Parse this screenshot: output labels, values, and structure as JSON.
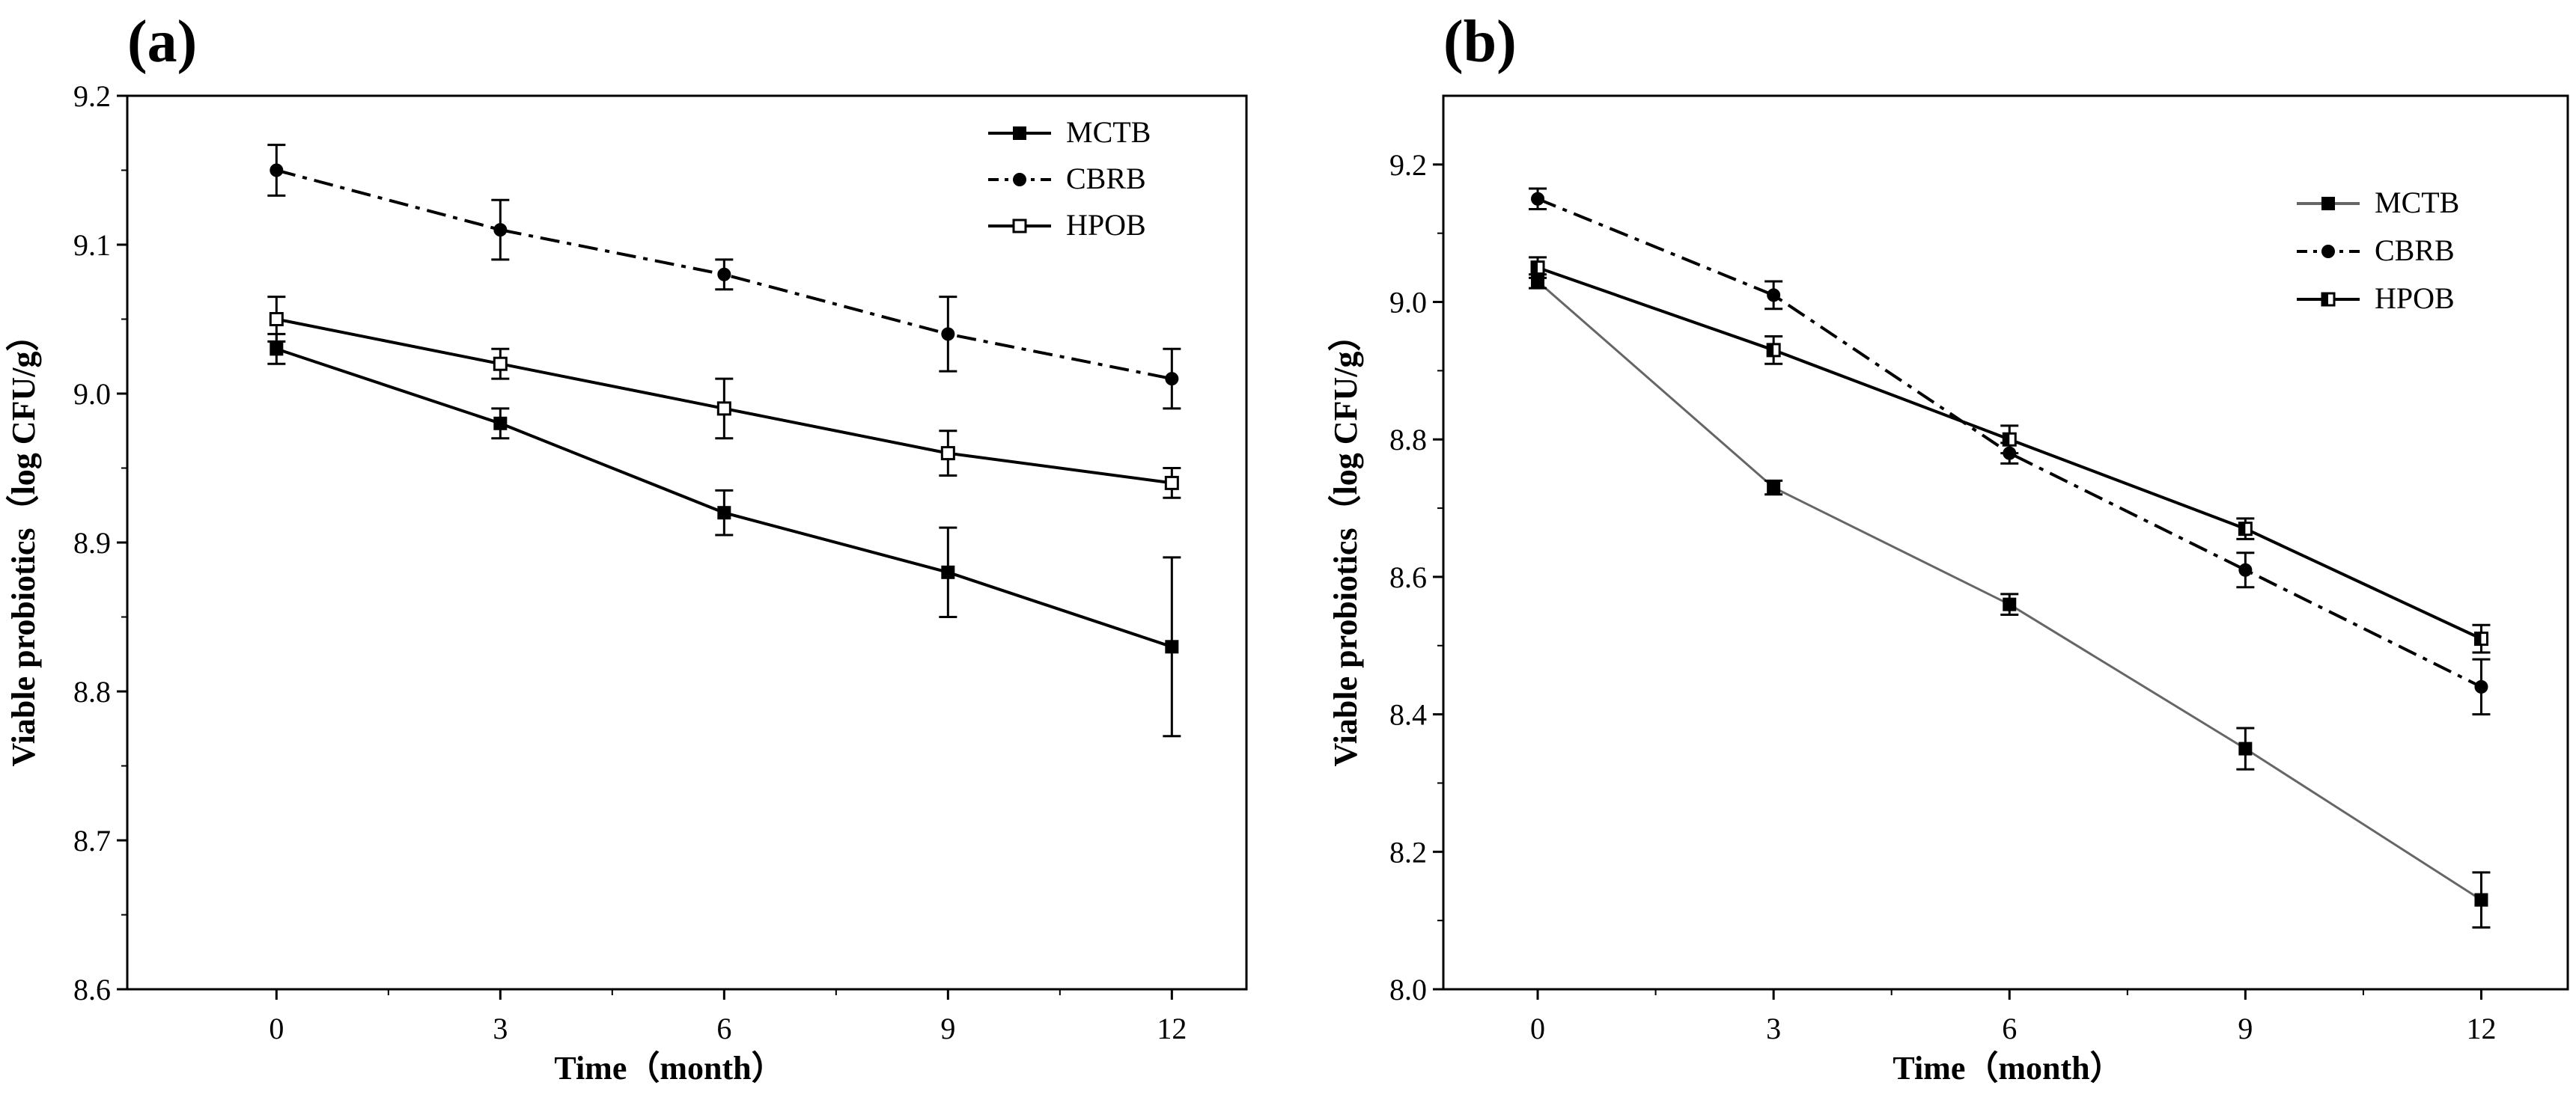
{
  "chart_data": [
    {
      "type": "line",
      "panel_label": "(a)",
      "xlabel": "Time（month）",
      "ylabel": "Viable probiotics（log CFU/g）",
      "x": [
        0,
        3,
        6,
        9,
        12
      ],
      "x_ticks": [
        "0",
        "3",
        "6",
        "9",
        "12"
      ],
      "xlim": [
        -2,
        13
      ],
      "ylim": [
        8.6,
        9.2
      ],
      "y_ticks": [
        "8.6",
        "8.7",
        "8.8",
        "8.9",
        "9.0",
        "9.1",
        "9.2"
      ],
      "legend_position": "top-right",
      "grid": false,
      "series": [
        {
          "name": "MCTB",
          "values": [
            9.03,
            8.98,
            8.92,
            8.88,
            8.83
          ],
          "errors": [
            0.01,
            0.01,
            0.015,
            0.03,
            0.06
          ],
          "marker": "filled-square",
          "line_style": "solid",
          "color": "#000000"
        },
        {
          "name": "CBRB",
          "values": [
            9.15,
            9.11,
            9.08,
            9.04,
            9.01
          ],
          "errors": [
            0.017,
            0.02,
            0.01,
            0.025,
            0.02
          ],
          "marker": "filled-circle",
          "line_style": "dash-dot",
          "color": "#000000"
        },
        {
          "name": "HPOB",
          "values": [
            9.05,
            9.02,
            8.99,
            8.96,
            8.94
          ],
          "errors": [
            0.015,
            0.01,
            0.02,
            0.015,
            0.01
          ],
          "marker": "open-square",
          "line_style": "solid",
          "color": "#000000"
        }
      ]
    },
    {
      "type": "line",
      "panel_label": "(b)",
      "xlabel": "Time（month）",
      "ylabel": "Viable probiotics（log CFU/g）",
      "x": [
        0,
        3,
        6,
        9,
        12
      ],
      "x_ticks": [
        "0",
        "3",
        "6",
        "9",
        "12"
      ],
      "xlim": [
        -1.2,
        13.1
      ],
      "ylim": [
        8.0,
        9.3
      ],
      "y_ticks": [
        "8.0",
        "8.2",
        "8.4",
        "8.6",
        "8.8",
        "9.0",
        "9.2"
      ],
      "legend_position": "top-right",
      "grid": false,
      "series": [
        {
          "name": "MCTB",
          "values": [
            9.03,
            8.73,
            8.56,
            8.35,
            8.13
          ],
          "errors": [
            0.01,
            0.01,
            0.015,
            0.03,
            0.04
          ],
          "marker": "filled-square",
          "line_style": "solid",
          "color": "#666666"
        },
        {
          "name": "CBRB",
          "values": [
            9.15,
            9.01,
            8.78,
            8.61,
            8.44
          ],
          "errors": [
            0.015,
            0.02,
            0.015,
            0.025,
            0.04
          ],
          "marker": "filled-circle",
          "line_style": "dash-dot",
          "color": "#000000"
        },
        {
          "name": "HPOB",
          "values": [
            9.05,
            8.93,
            8.8,
            8.67,
            8.51
          ],
          "errors": [
            0.015,
            0.02,
            0.02,
            0.015,
            0.02
          ],
          "marker": "half-square",
          "line_style": "solid",
          "color": "#000000"
        }
      ]
    }
  ]
}
